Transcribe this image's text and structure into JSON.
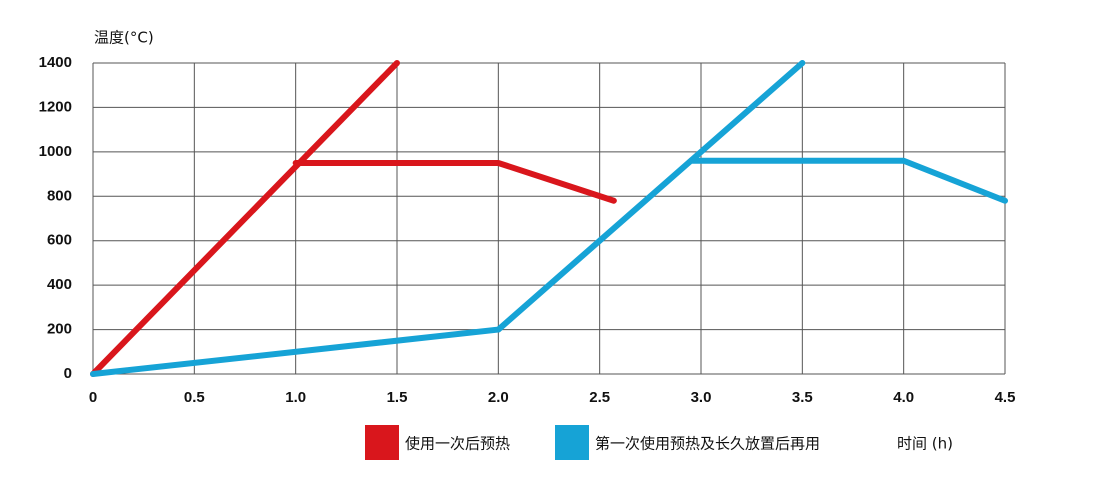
{
  "chart_data": {
    "type": "line",
    "y_label": "温度(°C)",
    "x_label": "时间 (h)",
    "xlim": [
      0,
      4.5
    ],
    "ylim": [
      0,
      1400
    ],
    "xticks": [
      0,
      0.5,
      {
        "value": 1,
        "label": "1.0"
      },
      1.5,
      {
        "value": 2,
        "label": "2.0"
      },
      2.5,
      {
        "value": 3,
        "label": "3.0"
      },
      3.5,
      {
        "value": 4,
        "label": "4.0"
      },
      4.5
    ],
    "yticks": [
      0,
      200,
      400,
      600,
      800,
      1000,
      1200,
      1400
    ],
    "grid": true,
    "series": [
      {
        "name": "使用一次后预热",
        "color": "#d9161c",
        "x": [
          0,
          1.5,
          null,
          1,
          2,
          2.57
        ],
        "values": [
          0,
          1400,
          null,
          950,
          950,
          780
        ]
      },
      {
        "name": "第一次使用预热及长久放置后再用",
        "color": "#16a3d6",
        "x": [
          0,
          2,
          3.5,
          null,
          2.95,
          4,
          4.5
        ],
        "values": [
          0,
          200,
          1400,
          null,
          960,
          960,
          780
        ]
      }
    ]
  }
}
